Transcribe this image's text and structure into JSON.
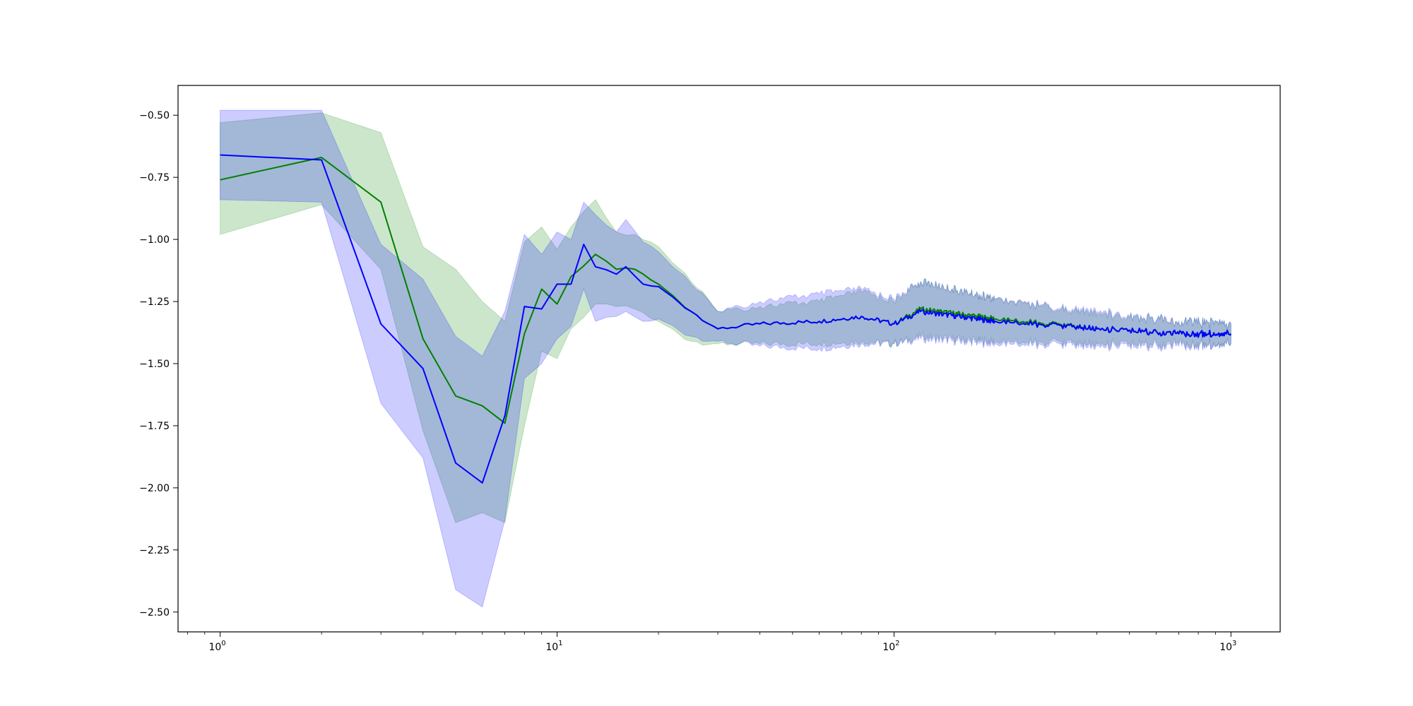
{
  "chart_data": {
    "type": "line",
    "title": "",
    "xlabel": "",
    "ylabel": "",
    "xscale": "log",
    "xlim": [
      0.75,
      1400
    ],
    "ylim": [
      -2.58,
      -0.38
    ],
    "grid": false,
    "x_ticks": [
      {
        "value": 1,
        "label": "10",
        "exp": "0"
      },
      {
        "value": 10,
        "label": "10",
        "exp": "1"
      },
      {
        "value": 100,
        "label": "10",
        "exp": "2"
      },
      {
        "value": 1000,
        "label": "10",
        "exp": "3"
      }
    ],
    "y_ticks": [
      {
        "value": -0.5,
        "label": "−0.50"
      },
      {
        "value": -0.75,
        "label": "−0.75"
      },
      {
        "value": -1.0,
        "label": "−1.00"
      },
      {
        "value": -1.25,
        "label": "−1.25"
      },
      {
        "value": -1.5,
        "label": "−1.50"
      },
      {
        "value": -1.75,
        "label": "−1.75"
      },
      {
        "value": -2.0,
        "label": "−2.00"
      },
      {
        "value": -2.25,
        "label": "−2.25"
      },
      {
        "value": -2.5,
        "label": "−2.50"
      }
    ],
    "series": [
      {
        "color": "#008000",
        "band_color": "#008000",
        "band_opacity": 0.2,
        "points": [
          {
            "x": 1,
            "y": -0.76,
            "lo": -0.98,
            "hi": -0.53
          },
          {
            "x": 2,
            "y": -0.67,
            "lo": -0.86,
            "hi": -0.49
          },
          {
            "x": 3,
            "y": -0.85,
            "lo": -1.12,
            "hi": -0.57
          },
          {
            "x": 4,
            "y": -1.4,
            "lo": -1.77,
            "hi": -1.03
          },
          {
            "x": 5,
            "y": -1.63,
            "lo": -2.14,
            "hi": -1.12
          },
          {
            "x": 6,
            "y": -1.67,
            "lo": -2.1,
            "hi": -1.25
          },
          {
            "x": 7,
            "y": -1.74,
            "lo": -2.14,
            "hi": -1.33
          },
          {
            "x": 8,
            "y": -1.38,
            "lo": -1.75,
            "hi": -1.01
          },
          {
            "x": 9,
            "y": -1.2,
            "lo": -1.45,
            "hi": -0.95
          },
          {
            "x": 10,
            "y": -1.26,
            "lo": -1.48,
            "hi": -1.04
          },
          {
            "x": 11,
            "y": -1.15,
            "lo": -1.36,
            "hi": -0.95
          },
          {
            "x": 13,
            "y": -1.06,
            "lo": -1.26,
            "hi": -0.84
          },
          {
            "x": 15,
            "y": -1.12,
            "lo": -1.27,
            "hi": -0.97
          },
          {
            "x": 17,
            "y": -1.12,
            "lo": -1.28,
            "hi": -0.98
          },
          {
            "x": 20,
            "y": -1.18,
            "lo": -1.33,
            "hi": -1.03
          },
          {
            "x": 25,
            "y": -1.29,
            "lo": -1.41,
            "hi": -1.17
          },
          {
            "x": 30,
            "y": -1.36,
            "lo": -1.42,
            "hi": -1.29
          },
          {
            "x": 40,
            "y": -1.34,
            "lo": -1.42,
            "hi": -1.27
          },
          {
            "x": 60,
            "y": -1.33,
            "lo": -1.42,
            "hi": -1.25
          },
          {
            "x": 80,
            "y": -1.31,
            "lo": -1.41,
            "hi": -1.21
          },
          {
            "x": 100,
            "y": -1.34,
            "lo": -1.42,
            "hi": -1.25
          },
          {
            "x": 120,
            "y": -1.28,
            "lo": -1.39,
            "hi": -1.17
          },
          {
            "x": 200,
            "y": -1.32,
            "lo": -1.41,
            "hi": -1.24
          },
          {
            "x": 400,
            "y": -1.36,
            "lo": -1.42,
            "hi": -1.3
          },
          {
            "x": 700,
            "y": -1.38,
            "lo": -1.42,
            "hi": -1.33
          },
          {
            "x": 1000,
            "y": -1.38,
            "lo": -1.42,
            "hi": -1.34
          }
        ]
      },
      {
        "color": "#0000ff",
        "band_color": "#0000ff",
        "band_opacity": 0.2,
        "points": [
          {
            "x": 1,
            "y": -0.66,
            "lo": -0.84,
            "hi": -0.48
          },
          {
            "x": 2,
            "y": -0.68,
            "lo": -0.85,
            "hi": -0.48
          },
          {
            "x": 3,
            "y": -1.34,
            "lo": -1.66,
            "hi": -1.02
          },
          {
            "x": 4,
            "y": -1.52,
            "lo": -1.88,
            "hi": -1.16
          },
          {
            "x": 5,
            "y": -1.9,
            "lo": -2.41,
            "hi": -1.39
          },
          {
            "x": 6,
            "y": -1.98,
            "lo": -2.48,
            "hi": -1.47
          },
          {
            "x": 7,
            "y": -1.71,
            "lo": -2.13,
            "hi": -1.29
          },
          {
            "x": 8,
            "y": -1.27,
            "lo": -1.56,
            "hi": -0.98
          },
          {
            "x": 9,
            "y": -1.28,
            "lo": -1.5,
            "hi": -1.06
          },
          {
            "x": 10,
            "y": -1.18,
            "lo": -1.4,
            "hi": -0.97
          },
          {
            "x": 11,
            "y": -1.18,
            "lo": -1.35,
            "hi": -1.0
          },
          {
            "x": 12,
            "y": -1.02,
            "lo": -1.2,
            "hi": -0.85
          },
          {
            "x": 13,
            "y": -1.11,
            "lo": -1.33,
            "hi": -0.9
          },
          {
            "x": 15,
            "y": -1.14,
            "lo": -1.31,
            "hi": -0.97
          },
          {
            "x": 16,
            "y": -1.11,
            "lo": -1.29,
            "hi": -0.92
          },
          {
            "x": 18,
            "y": -1.18,
            "lo": -1.33,
            "hi": -1.01
          },
          {
            "x": 20,
            "y": -1.19,
            "lo": -1.32,
            "hi": -1.05
          },
          {
            "x": 25,
            "y": -1.29,
            "lo": -1.39,
            "hi": -1.18
          },
          {
            "x": 30,
            "y": -1.36,
            "lo": -1.41,
            "hi": -1.29
          },
          {
            "x": 40,
            "y": -1.34,
            "lo": -1.43,
            "hi": -1.25
          },
          {
            "x": 60,
            "y": -1.33,
            "lo": -1.44,
            "hi": -1.22
          },
          {
            "x": 80,
            "y": -1.31,
            "lo": -1.42,
            "hi": -1.2
          },
          {
            "x": 100,
            "y": -1.34,
            "lo": -1.42,
            "hi": -1.24
          },
          {
            "x": 120,
            "y": -1.29,
            "lo": -1.4,
            "hi": -1.17
          },
          {
            "x": 200,
            "y": -1.33,
            "lo": -1.42,
            "hi": -1.24
          },
          {
            "x": 400,
            "y": -1.36,
            "lo": -1.43,
            "hi": -1.29
          },
          {
            "x": 700,
            "y": -1.38,
            "lo": -1.43,
            "hi": -1.33
          },
          {
            "x": 1000,
            "y": -1.38,
            "lo": -1.42,
            "hi": -1.34
          }
        ]
      }
    ]
  }
}
